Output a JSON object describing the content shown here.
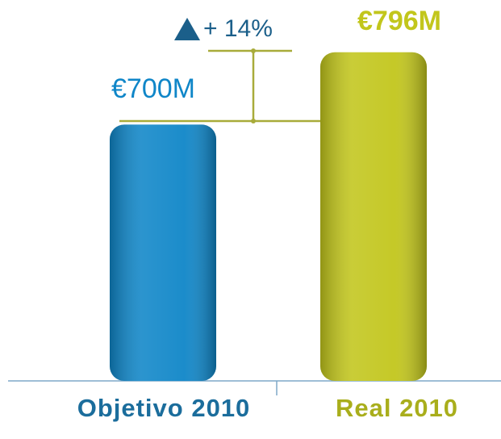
{
  "chart_data": {
    "type": "bar",
    "categories": [
      "Objetivo 2010",
      "Real 2010"
    ],
    "values": [
      700,
      796
    ],
    "value_labels": [
      "€700M",
      "€796M"
    ],
    "colors": [
      "#0f86c8",
      "#c2c61c"
    ],
    "annotation": "+ 14%",
    "ylim": [
      360,
      800
    ]
  }
}
